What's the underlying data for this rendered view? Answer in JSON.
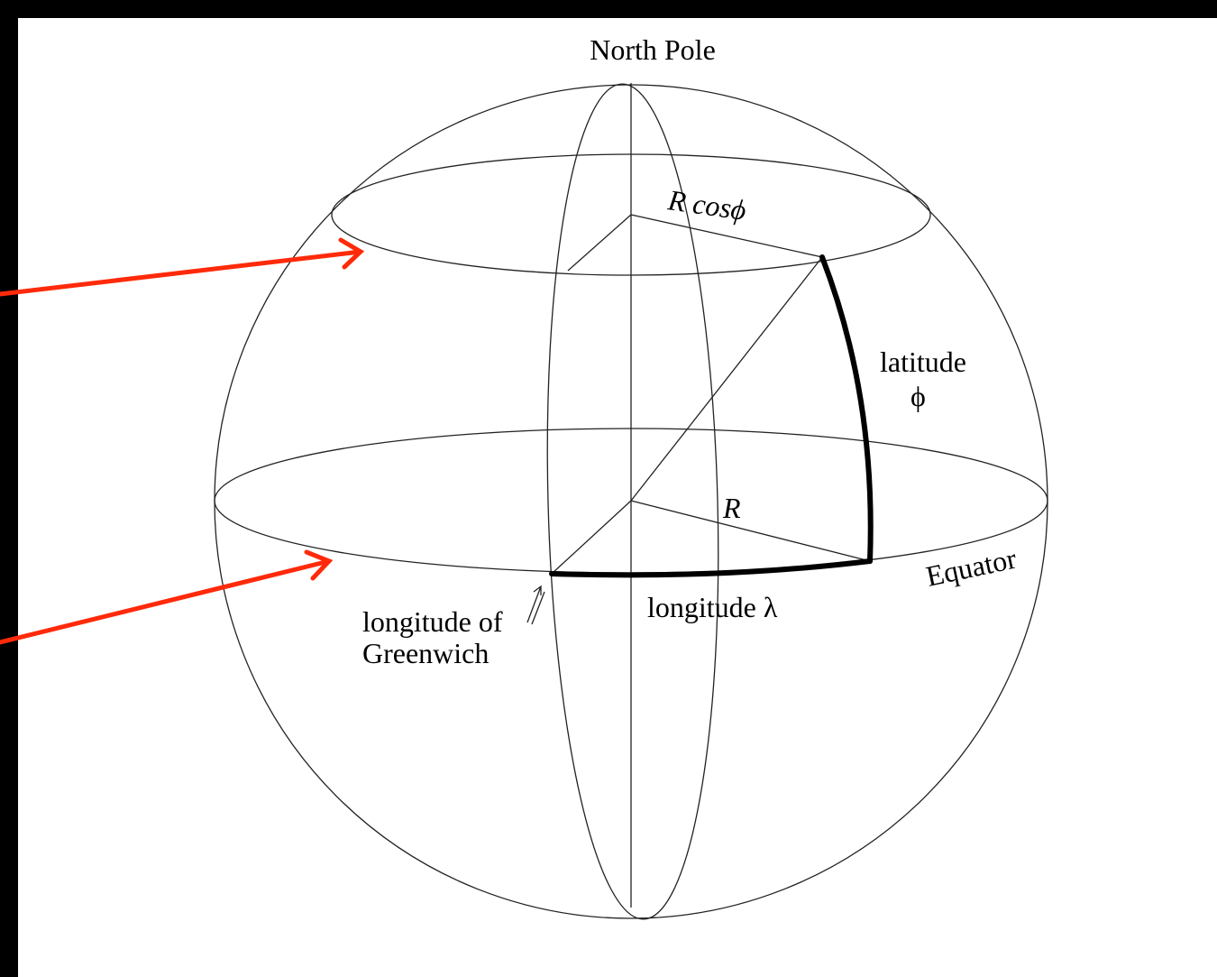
{
  "labels": {
    "north_pole": "North Pole",
    "r_cos_phi": "R cosϕ",
    "latitude": "latitude",
    "phi": "ϕ",
    "radius": "R",
    "equator": "Equator",
    "longitude": "longitude λ",
    "greenwich_line1": "longitude of",
    "greenwich_line2": "Greenwich"
  }
}
